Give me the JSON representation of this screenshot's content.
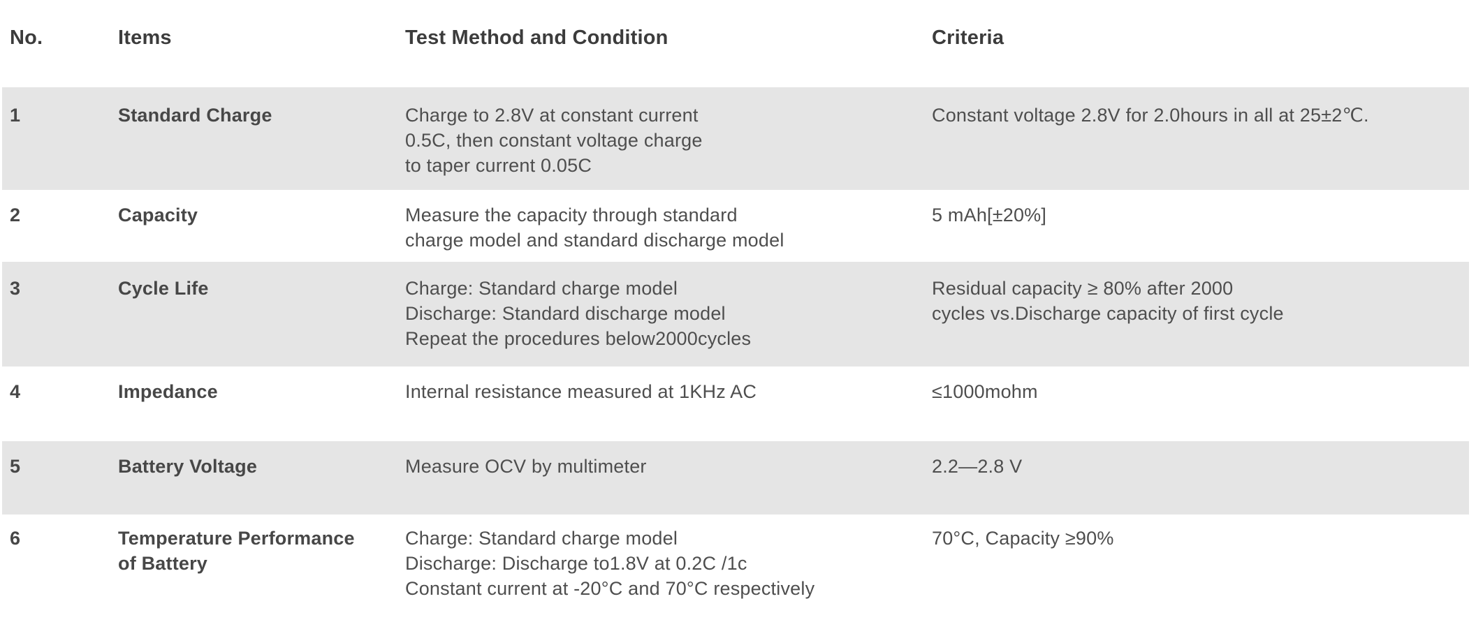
{
  "table": {
    "columns": [
      {
        "key": "no",
        "label": "No."
      },
      {
        "key": "item",
        "label": "Items"
      },
      {
        "key": "method",
        "label": "Test Method and Condition"
      },
      {
        "key": "criteria",
        "label": "Criteria"
      }
    ],
    "rows": [
      {
        "no": "1",
        "item": [
          "Standard Charge"
        ],
        "method": [
          "Charge to 2.8V at constant current",
          "0.5C, then constant voltage charge",
          "to taper current 0.05C"
        ],
        "criteria": [
          "Constant voltage 2.8V for 2.0hours in all at 25±2℃."
        ]
      },
      {
        "no": "2",
        "item": [
          "Capacity"
        ],
        "method": [
          "Measure the capacity through standard",
          "charge model and standard discharge model"
        ],
        "criteria": [
          "5 mAh[±20%]"
        ]
      },
      {
        "no": "3",
        "item": [
          "Cycle Life"
        ],
        "method": [
          "Charge: Standard charge model",
          "Discharge: Standard discharge model",
          "Repeat the procedures below2000cycles"
        ],
        "criteria": [
          "Residual capacity ≥ 80% after 2000",
          "cycles vs.Discharge capacity of first cycle"
        ]
      },
      {
        "no": "4",
        "item": [
          "Impedance"
        ],
        "method": [
          "Internal resistance measured at 1KHz AC"
        ],
        "criteria": [
          "≤1000mohm"
        ]
      },
      {
        "no": "5",
        "item": [
          "Battery Voltage"
        ],
        "method": [
          "Measure OCV by multimeter"
        ],
        "criteria": [
          "2.2—2.8 V"
        ]
      },
      {
        "no": "6",
        "item": [
          "Temperature Performance",
          "of Battery"
        ],
        "method": [
          "Charge: Standard charge model",
          "Discharge: Discharge to1.8V at 0.2C /1c",
          "Constant current at -20°C and 70°C respectively"
        ],
        "criteria": [
          "70°C, Capacity ≥90%"
        ]
      }
    ]
  },
  "colors": {
    "row_shade": "#e5e5e5",
    "header_text": "#3c3c3c",
    "body_text": "#4e4e4e"
  }
}
